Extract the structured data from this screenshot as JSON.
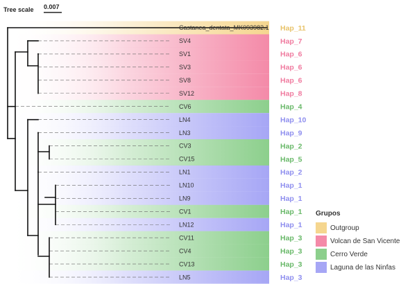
{
  "scale": {
    "title": "Tree scale",
    "value": "0.007"
  },
  "groups": {
    "outgroup": {
      "label": "Outgroup",
      "color": "#f5d68f"
    },
    "volcan": {
      "label": "Volcan de San Vicente",
      "color": "#f48aa8"
    },
    "cerro": {
      "label": "Cerro Verde",
      "color": "#8ccf8c"
    },
    "laguna": {
      "label": "Laguna de las Ninfas",
      "color": "#a6a6f5"
    }
  },
  "hap_colors": {
    "outgroup": "#e8c36a",
    "volcan": "#f07ca0",
    "cerro": "#6ab96a",
    "laguna": "#8f8fef"
  },
  "legend": {
    "title": "Grupos",
    "items": [
      {
        "key": "outgroup",
        "label": "Outgroup"
      },
      {
        "key": "volcan",
        "label": "Volcan de San Vicente"
      },
      {
        "key": "cerro",
        "label": "Cerro Verde"
      },
      {
        "key": "laguna",
        "label": "Laguna de las Ninfas"
      }
    ]
  },
  "leaves": [
    {
      "name": "Castanea_dentata_MK093982.1",
      "hap": "Hap_11",
      "group": "outgroup"
    },
    {
      "name": "SV4",
      "hap": "Hap_7",
      "group": "volcan"
    },
    {
      "name": "SV1",
      "hap": "Hap_6",
      "group": "volcan"
    },
    {
      "name": "SV3",
      "hap": "Hap_6",
      "group": "volcan"
    },
    {
      "name": "SV8",
      "hap": "Hap_6",
      "group": "volcan"
    },
    {
      "name": "SV12",
      "hap": "Hap_8",
      "group": "volcan"
    },
    {
      "name": "CV6",
      "hap": "Hap_4",
      "group": "cerro"
    },
    {
      "name": "LN4",
      "hap": "Hap_10",
      "group": "laguna"
    },
    {
      "name": "LN3",
      "hap": "Hap_9",
      "group": "laguna"
    },
    {
      "name": "CV3",
      "hap": "Hap_2",
      "group": "cerro"
    },
    {
      "name": "CV15",
      "hap": "Hap_5",
      "group": "cerro"
    },
    {
      "name": "LN1",
      "hap": "Hap_2",
      "group": "laguna"
    },
    {
      "name": "LN10",
      "hap": "Hap_1",
      "group": "laguna"
    },
    {
      "name": "LN9",
      "hap": "Hap_1",
      "group": "laguna"
    },
    {
      "name": "CV1",
      "hap": "Hap_1",
      "group": "cerro"
    },
    {
      "name": "LN12",
      "hap": "Hap_1",
      "group": "laguna"
    },
    {
      "name": "CV11",
      "hap": "Hap_3",
      "group": "cerro"
    },
    {
      "name": "CV4",
      "hap": "Hap_3",
      "group": "cerro"
    },
    {
      "name": "CV13",
      "hap": "Hap_3",
      "group": "cerro"
    },
    {
      "name": "LN5",
      "hap": "Hap_3",
      "group": "laguna"
    }
  ]
}
